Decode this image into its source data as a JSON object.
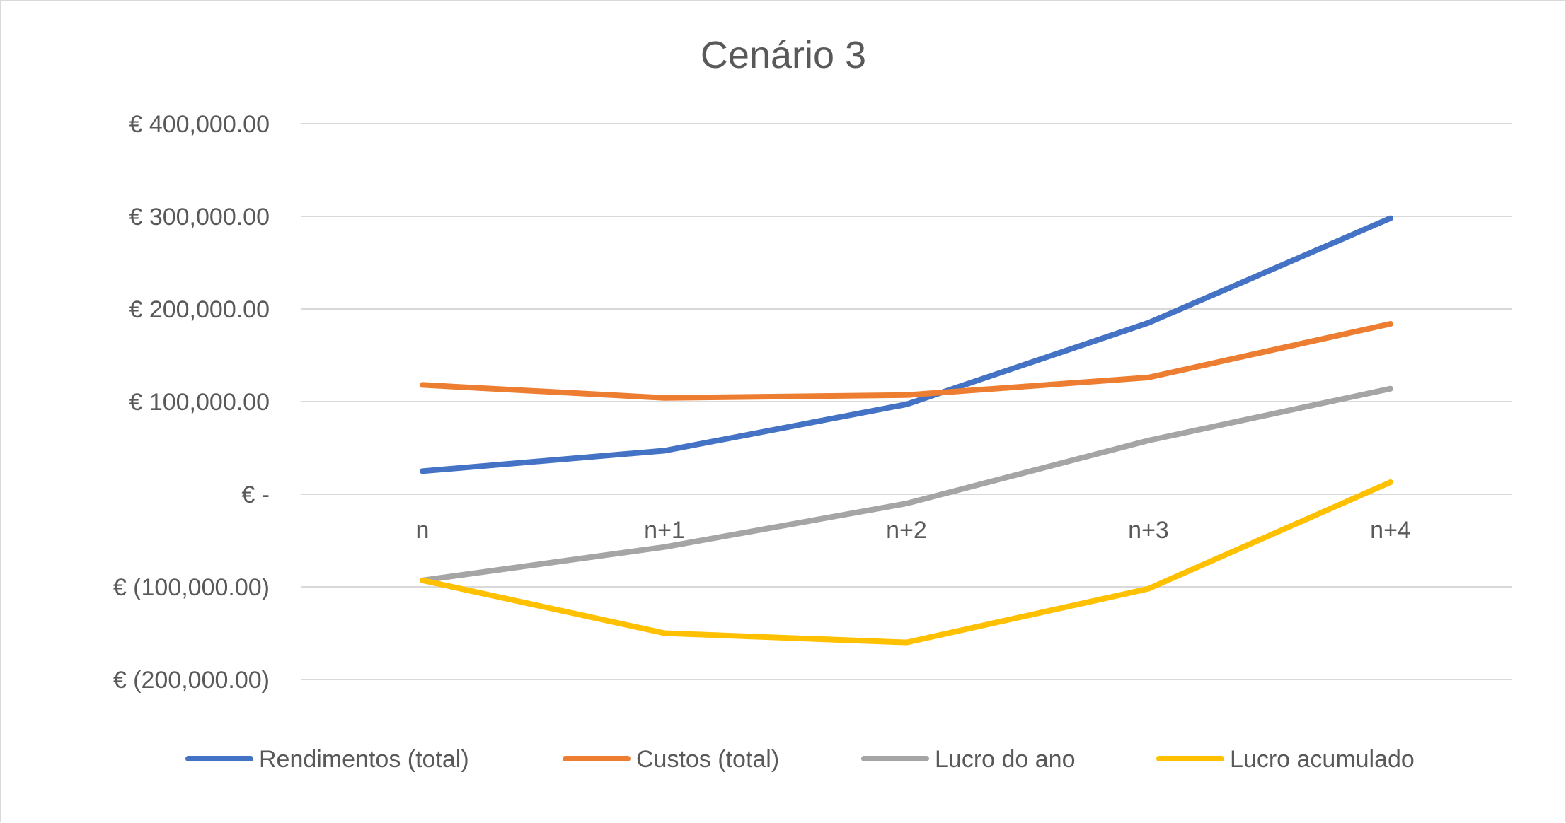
{
  "chart_data": {
    "type": "line",
    "title": "Cenário 3",
    "categories": [
      "n",
      "n+1",
      "n+2",
      "n+3",
      "n+4"
    ],
    "ylim": [
      -200000,
      400000
    ],
    "yticks": [
      400000,
      300000,
      200000,
      100000,
      0,
      -100000,
      -200000
    ],
    "ytick_labels": [
      "€ 400,000.00",
      "€ 300,000.00",
      "€ 200,000.00",
      "€ 100,000.00",
      "€ -",
      "€ (100,000.00)",
      "€ (200,000.00)"
    ],
    "grid": true,
    "legend_position": "bottom",
    "series": [
      {
        "name": "Rendimentos (total)",
        "color": "#4472C4",
        "values": [
          25000,
          47000,
          97000,
          185000,
          298000
        ]
      },
      {
        "name": "Custos (total)",
        "color": "#ED7D31",
        "values": [
          118000,
          104000,
          107000,
          126000,
          184000
        ]
      },
      {
        "name": "Lucro do ano",
        "color": "#A5A5A5",
        "values": [
          -93000,
          -57000,
          -10000,
          58000,
          114000
        ]
      },
      {
        "name": "Lucro acumulado",
        "color": "#FFC000",
        "values": [
          -93000,
          -150000,
          -160000,
          -102000,
          13000
        ]
      }
    ]
  }
}
